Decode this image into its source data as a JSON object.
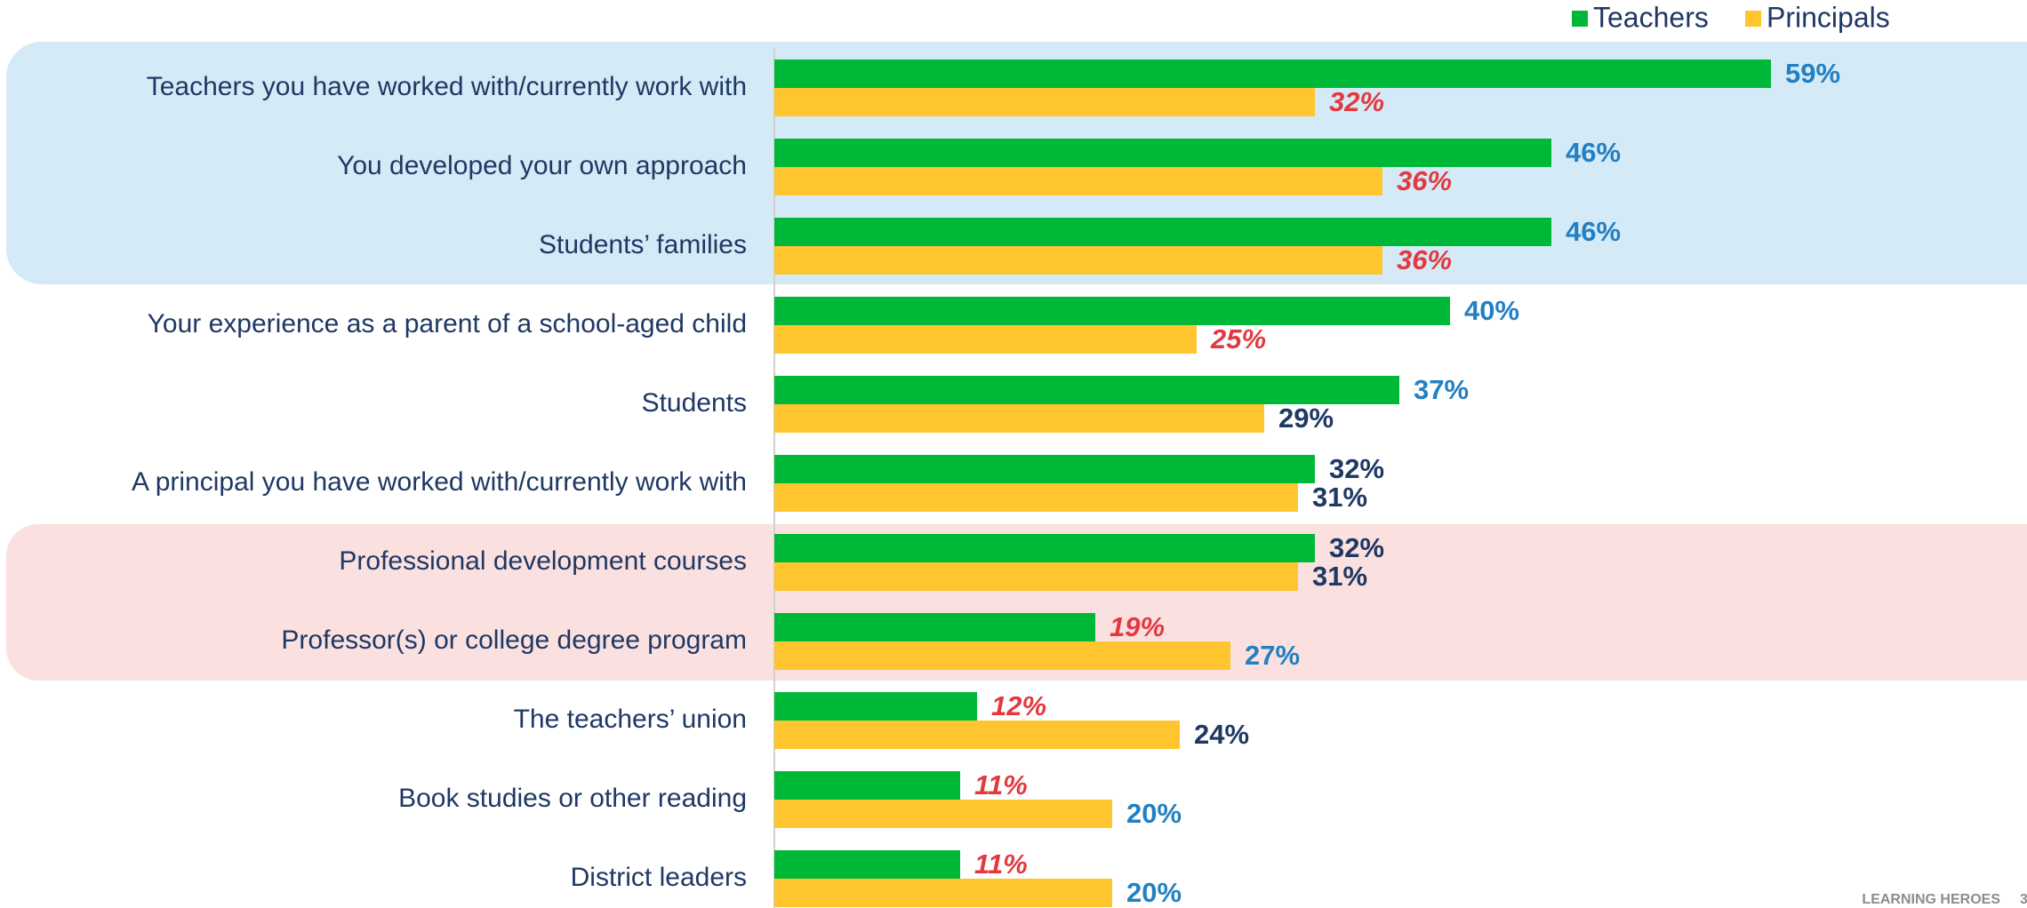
{
  "chart_data": {
    "type": "hbar",
    "categories": [
      "Teachers you have worked with/currently work with",
      "You developed your own approach",
      "Students’ families",
      "Your experience as a parent of a school-aged child",
      "Students",
      "A principal you have worked with/currently work with",
      "Professional development courses",
      "Professor(s) or college degree program",
      "The teachers’ union",
      "Book studies or other reading",
      "District leaders"
    ],
    "series": [
      {
        "name": "Teachers",
        "color": "#00b837",
        "values": [
          59,
          46,
          46,
          40,
          37,
          32,
          32,
          19,
          12,
          11,
          11
        ],
        "value_labels": [
          "59%",
          "46%",
          "46%",
          "40%",
          "37%",
          "32%",
          "32%",
          "19%",
          "12%",
          "11%",
          "11%"
        ],
        "value_label_colors": [
          "#2280c3",
          "#2280c3",
          "#2280c3",
          "#2280c3",
          "#2280c3",
          "#1f3864",
          "#1f3864",
          "#e2393f",
          "#e2393f",
          "#e2393f",
          "#e2393f"
        ]
      },
      {
        "name": "Principals",
        "color": "#ffc52f",
        "values": [
          32,
          36,
          36,
          25,
          29,
          31,
          31,
          27,
          24,
          20,
          20
        ],
        "value_labels": [
          "32%",
          "36%",
          "36%",
          "25%",
          "29%",
          "31%",
          "31%",
          "27%",
          "24%",
          "20%",
          "20%"
        ],
        "value_label_colors": [
          "#e2393f",
          "#e2393f",
          "#e2393f",
          "#e2393f",
          "#1f3864",
          "#1f3864",
          "#1f3864",
          "#2280c3",
          "#1f3864",
          "#2280c3",
          "#2280c3"
        ]
      }
    ],
    "italic_label_color": "#e2393f",
    "xlim": [
      0,
      60
    ],
    "legend": "top-right"
  },
  "footer": {
    "brand": "LEARNING HEROES",
    "page_number": "3"
  }
}
